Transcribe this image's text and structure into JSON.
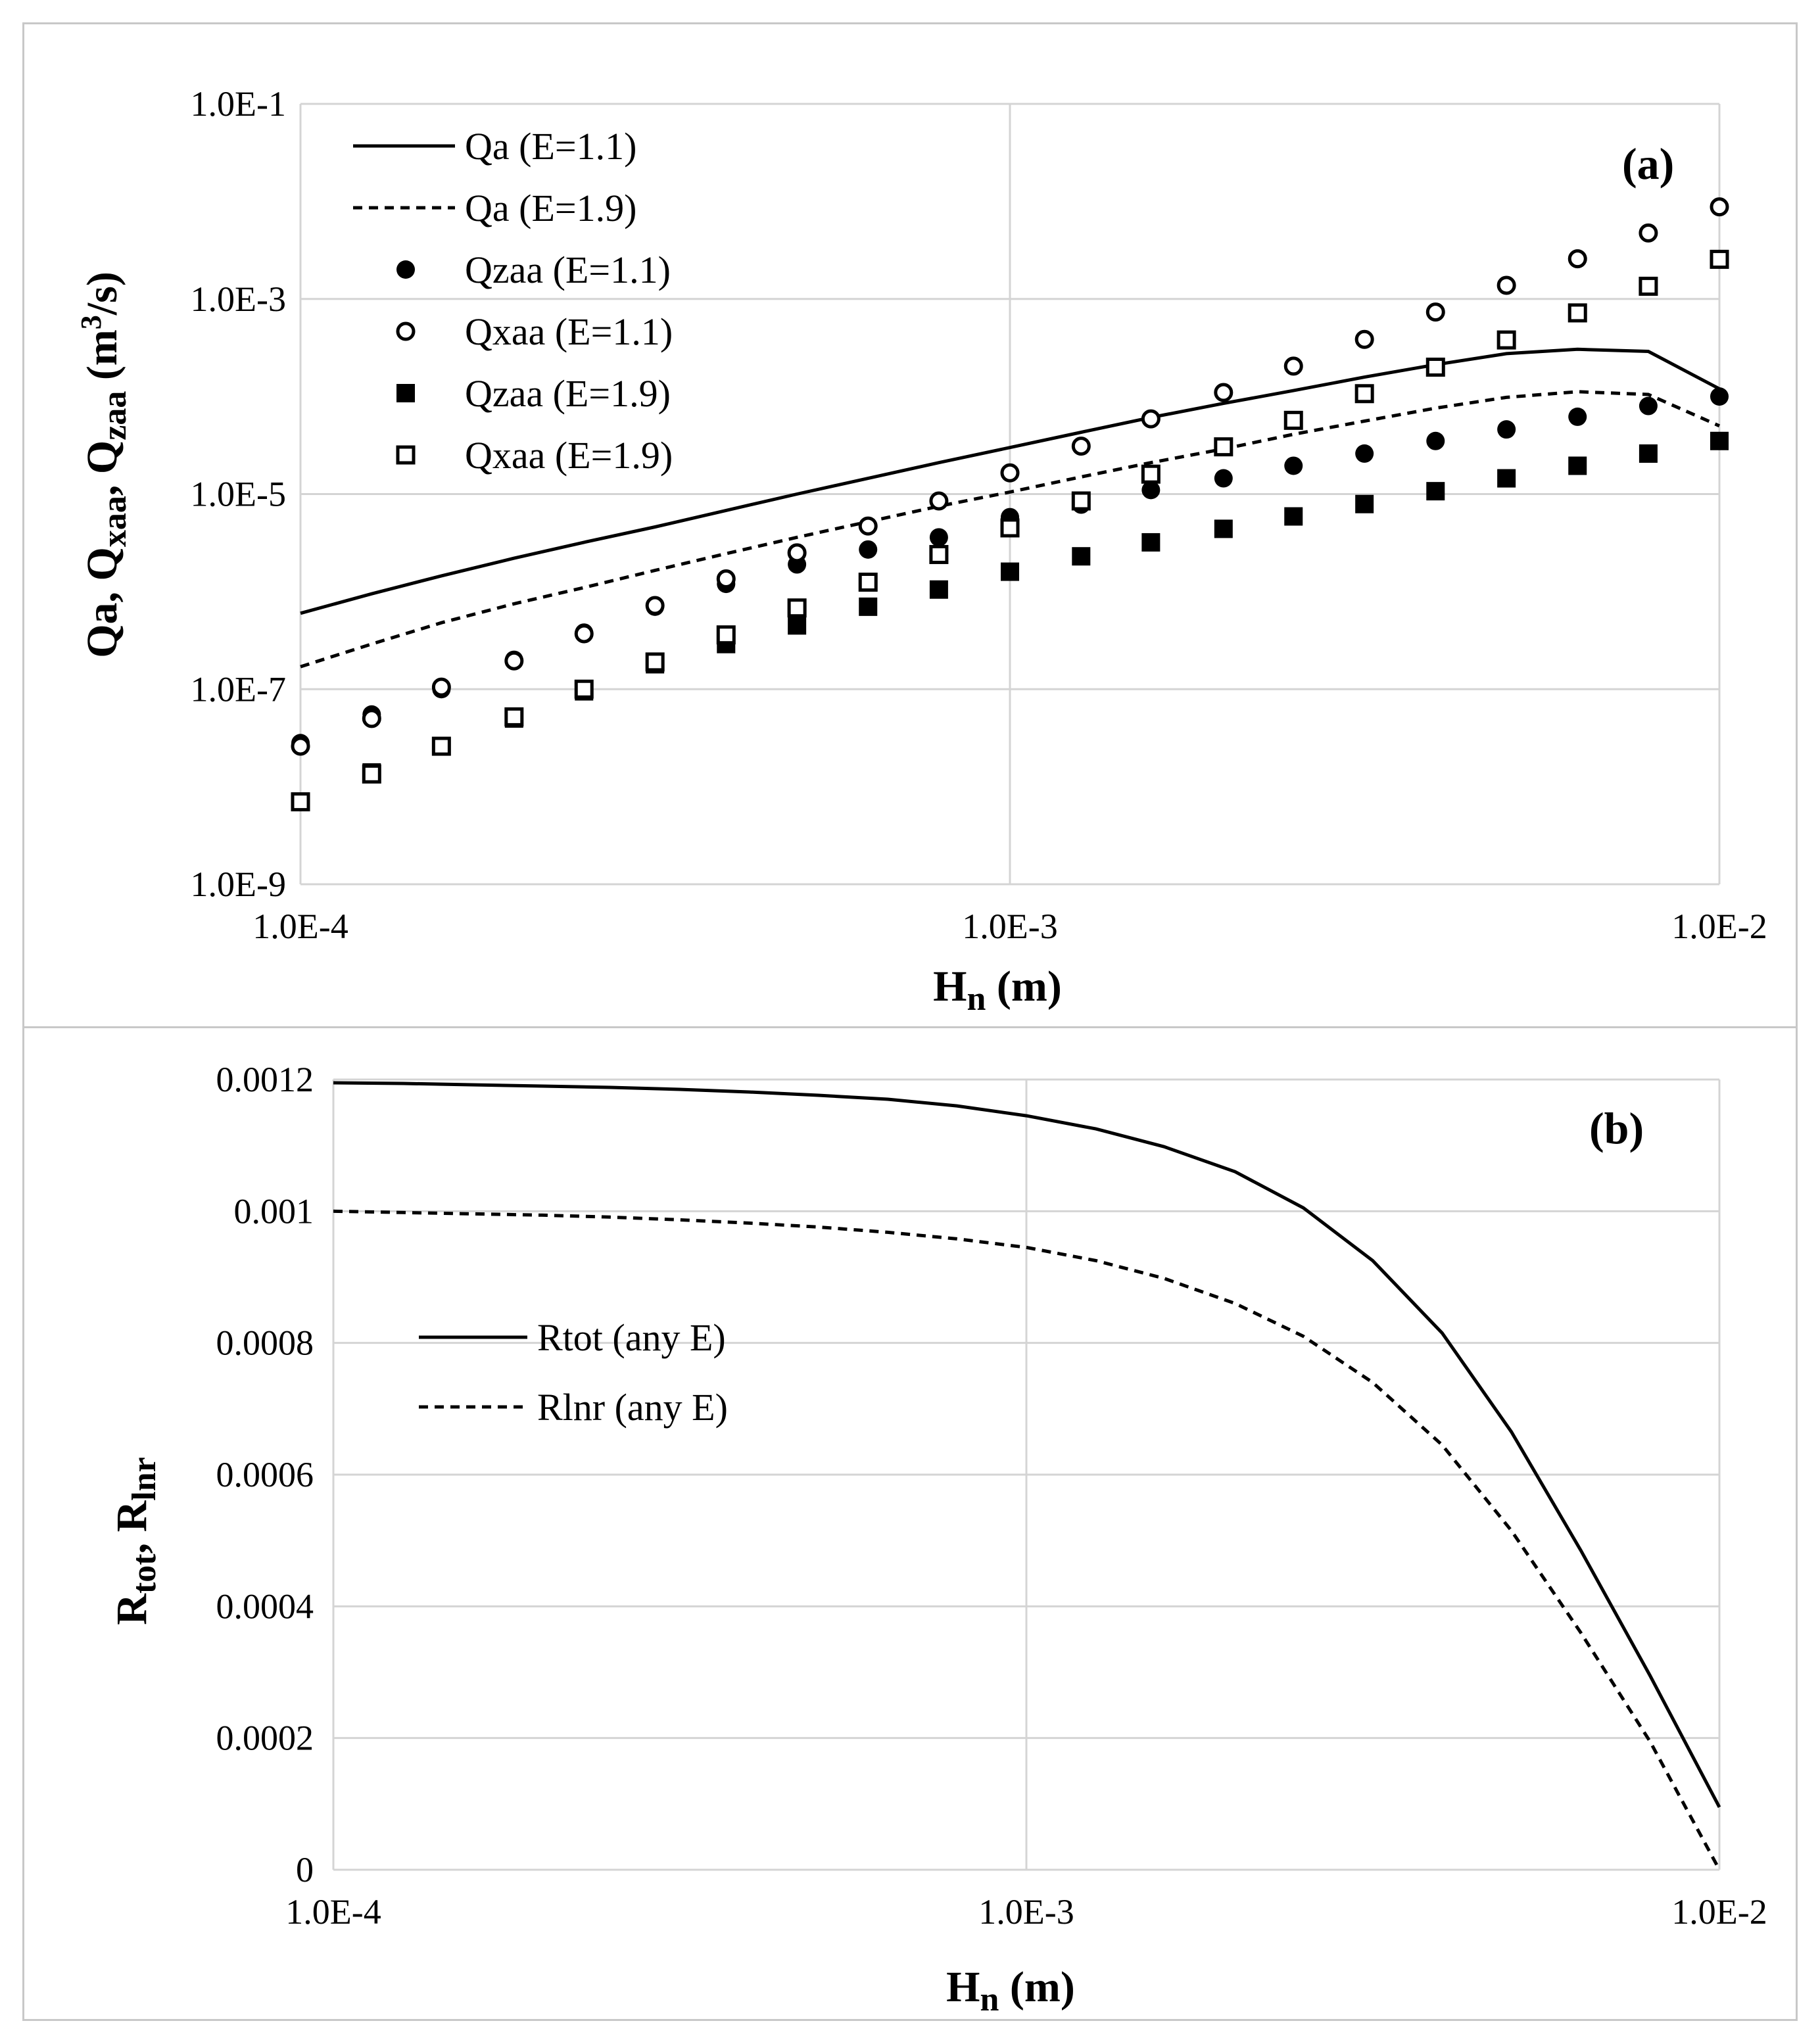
{
  "chart_data": [
    {
      "type": "scatter",
      "panel_label": "(a)",
      "xscale": "log",
      "yscale": "log",
      "xlim": [
        0.0001,
        0.01
      ],
      "ylim": [
        1e-09,
        0.1
      ],
      "xticks": [
        "1.0E-4",
        "1.0E-3",
        "1.0E-2"
      ],
      "yticks": [
        "1.0E-9",
        "1.0E-7",
        "1.0E-5",
        "1.0E-3",
        "1.0E-1"
      ],
      "xlabel": "Hn (m)",
      "ylabel": "Qa, Qxaa, Qzaa (m3/s)",
      "xlabel_parts": {
        "main": "H",
        "sub": "n",
        "rest": " (m)"
      },
      "ylabel_parts": {
        "p1": "Qa, Q",
        "s1": "xaa",
        "p2": ", Q",
        "s2": "zaa",
        "p3": " (m",
        "sup": "3",
        "p4": "/s)"
      },
      "x": [
        0.0001,
        0.000126,
        0.000158,
        0.0002,
        0.000251,
        0.000316,
        0.000398,
        0.000501,
        0.000631,
        0.000794,
        0.001,
        0.00126,
        0.00158,
        0.002,
        0.00251,
        0.00316,
        0.00398,
        0.00501,
        0.00631,
        0.00794,
        0.01
      ],
      "series": [
        {
          "name": "Qa (E=1.1)",
          "style": "solid",
          "values": [
            6e-07,
            9.5e-07,
            1.45e-06,
            2.2e-06,
            3.2e-06,
            4.6e-06,
            6.8e-06,
            1e-05,
            1.45e-05,
            2.1e-05,
            3e-05,
            4.3e-05,
            6.1e-05,
            8.5e-05,
            0.000115,
            0.000158,
            0.000212,
            0.000275,
            0.000305,
            0.00029,
            0.00012
          ]
        },
        {
          "name": "Qa (E=1.9)",
          "style": "dashed",
          "values": [
            1.7e-07,
            2.9e-07,
            4.8e-07,
            7.5e-07,
            1.1e-06,
            1.65e-06,
            2.45e-06,
            3.6e-06,
            5.2e-06,
            7.5e-06,
            1.05e-05,
            1.5e-05,
            2.1e-05,
            2.9e-05,
            4.1e-05,
            5.6e-05,
            7.6e-05,
            9.8e-05,
            0.000112,
            0.000105,
            5e-05
          ]
        },
        {
          "name": "Qzaa (E=1.1)",
          "marker": "filled-circle",
          "values": [
            2.8e-08,
            5.5e-08,
            1e-07,
            2e-07,
            3.8e-07,
            7e-07,
            1.2e-06,
            1.9e-06,
            2.7e-06,
            3.6e-06,
            5.8e-06,
            7.8e-06,
            1.1e-05,
            1.45e-05,
            1.95e-05,
            2.6e-05,
            3.5e-05,
            4.6e-05,
            6.2e-05,
            8e-05,
            0.0001
          ]
        },
        {
          "name": "Qxaa (E=1.1)",
          "marker": "open-circle",
          "values": [
            2.6e-08,
            5e-08,
            1.05e-07,
            1.95e-07,
            3.7e-07,
            7.2e-07,
            1.35e-06,
            2.5e-06,
            4.7e-06,
            8.5e-06,
            1.65e-05,
            3.1e-05,
            5.9e-05,
            0.00011,
            0.000205,
            0.000385,
            0.000735,
            0.00138,
            0.00258,
            0.00475,
            0.0088
          ]
        },
        {
          "name": "Qzaa (E=1.9)",
          "marker": "filled-square",
          "values": [
            7e-09,
            1.4e-08,
            2.6e-08,
            5e-08,
            9.5e-08,
            1.8e-07,
            2.9e-07,
            4.5e-07,
            7e-07,
            1.05e-06,
            1.6e-06,
            2.3e-06,
            3.2e-06,
            4.4e-06,
            5.9e-06,
            7.9e-06,
            1.07e-05,
            1.45e-05,
            1.95e-05,
            2.6e-05,
            3.5e-05
          ]
        },
        {
          "name": "Qxaa (E=1.9)",
          "marker": "open-square",
          "values": [
            7e-09,
            1.35e-08,
            2.6e-08,
            5.2e-08,
            1e-07,
            1.9e-07,
            3.6e-07,
            6.8e-07,
            1.25e-06,
            2.4e-06,
            4.5e-06,
            8.5e-06,
            1.6e-05,
            3.05e-05,
            5.7e-05,
            0.000107,
            0.0002,
            0.00038,
            0.00072,
            0.00135,
            0.00255
          ]
        }
      ]
    },
    {
      "type": "line",
      "panel_label": "(b)",
      "xscale": "log",
      "xlim": [
        0.0001,
        0.01
      ],
      "ylim": [
        0,
        0.0012
      ],
      "xticks": [
        "1.0E-4",
        "1.0E-3",
        "1.0E-2"
      ],
      "yticks": [
        "0",
        "0.0002",
        "0.0004",
        "0.0006",
        "0.0008",
        "0.001",
        "0.0012"
      ],
      "xlabel": "Hn (m)",
      "ylabel": "Rtot, Rlnr",
      "xlabel_parts": {
        "main": "H",
        "sub": "n",
        "rest": " (m)"
      },
      "ylabel_parts": {
        "p1": "R",
        "s1": "tot",
        "p2": ", R",
        "s2": "lnr"
      },
      "x": [
        0.0001,
        0.000126,
        0.000158,
        0.0002,
        0.000251,
        0.000316,
        0.000398,
        0.000501,
        0.000631,
        0.000794,
        0.001,
        0.00126,
        0.00158,
        0.002,
        0.00251,
        0.00316,
        0.00398,
        0.00501,
        0.00631,
        0.00794,
        0.01
      ],
      "series": [
        {
          "name": "Rtot (any E)",
          "style": "solid",
          "values": [
            0.001195,
            0.001194,
            0.001192,
            0.00119,
            0.001188,
            0.001185,
            0.001181,
            0.001176,
            0.00117,
            0.00116,
            0.001145,
            0.001125,
            0.001098,
            0.00106,
            0.001005,
            0.000925,
            0.000815,
            0.000665,
            0.000485,
            0.000295,
            9.5e-05
          ]
        },
        {
          "name": "Rlnr (any E)",
          "style": "dashed",
          "values": [
            0.001,
            0.000998,
            0.000996,
            0.000994,
            0.000991,
            0.000987,
            0.000982,
            0.000976,
            0.000968,
            0.000958,
            0.000945,
            0.000925,
            0.000898,
            0.00086,
            0.00081,
            0.00074,
            0.000645,
            0.000515,
            0.00036,
            0.000195,
            0.0
          ]
        }
      ]
    }
  ]
}
